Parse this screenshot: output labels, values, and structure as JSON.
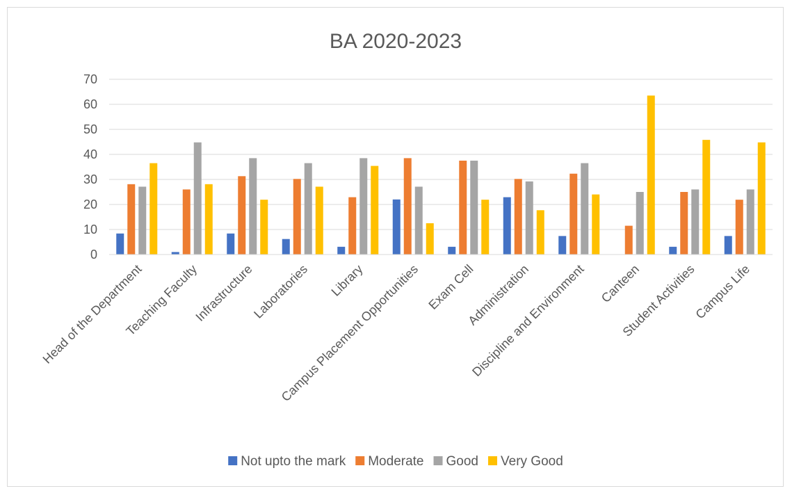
{
  "chart_data": {
    "type": "bar",
    "title": "BA 2020-2023",
    "xlabel": "",
    "ylabel": "",
    "ylim": [
      0,
      70
    ],
    "yticks": [
      0,
      10,
      20,
      30,
      40,
      50,
      60,
      70
    ],
    "grid": true,
    "legend_position": "bottom",
    "categories": [
      "Head of the Department",
      "Teaching Faculty",
      "Infrastructure",
      "Laboratories",
      "Library",
      "Campus Placement Opportunities",
      "Exam Cell",
      "Administration",
      "Discipline and Environment",
      "Canteen",
      "Student Activities",
      "Campus Life"
    ],
    "series": [
      {
        "name": "Not upto the mark",
        "color": "#4472c4",
        "values": [
          8.4,
          1.0,
          8.4,
          6.2,
          3.1,
          22.0,
          3.1,
          22.9,
          7.4,
          0,
          3.1,
          7.4
        ]
      },
      {
        "name": "Moderate",
        "color": "#ed7d31",
        "values": [
          28.1,
          26.0,
          31.3,
          30.2,
          22.9,
          38.5,
          37.5,
          30.2,
          32.3,
          11.5,
          25.0,
          21.9
        ]
      },
      {
        "name": "Good",
        "color": "#a5a5a5",
        "values": [
          27.1,
          44.8,
          38.5,
          36.5,
          38.5,
          27.1,
          37.5,
          29.2,
          36.5,
          25.0,
          26.0,
          26.0
        ]
      },
      {
        "name": "Very Good",
        "color": "#ffc000",
        "values": [
          36.5,
          28.1,
          21.9,
          27.1,
          35.4,
          12.5,
          21.9,
          17.7,
          24.0,
          63.5,
          45.8,
          44.8
        ]
      }
    ]
  }
}
